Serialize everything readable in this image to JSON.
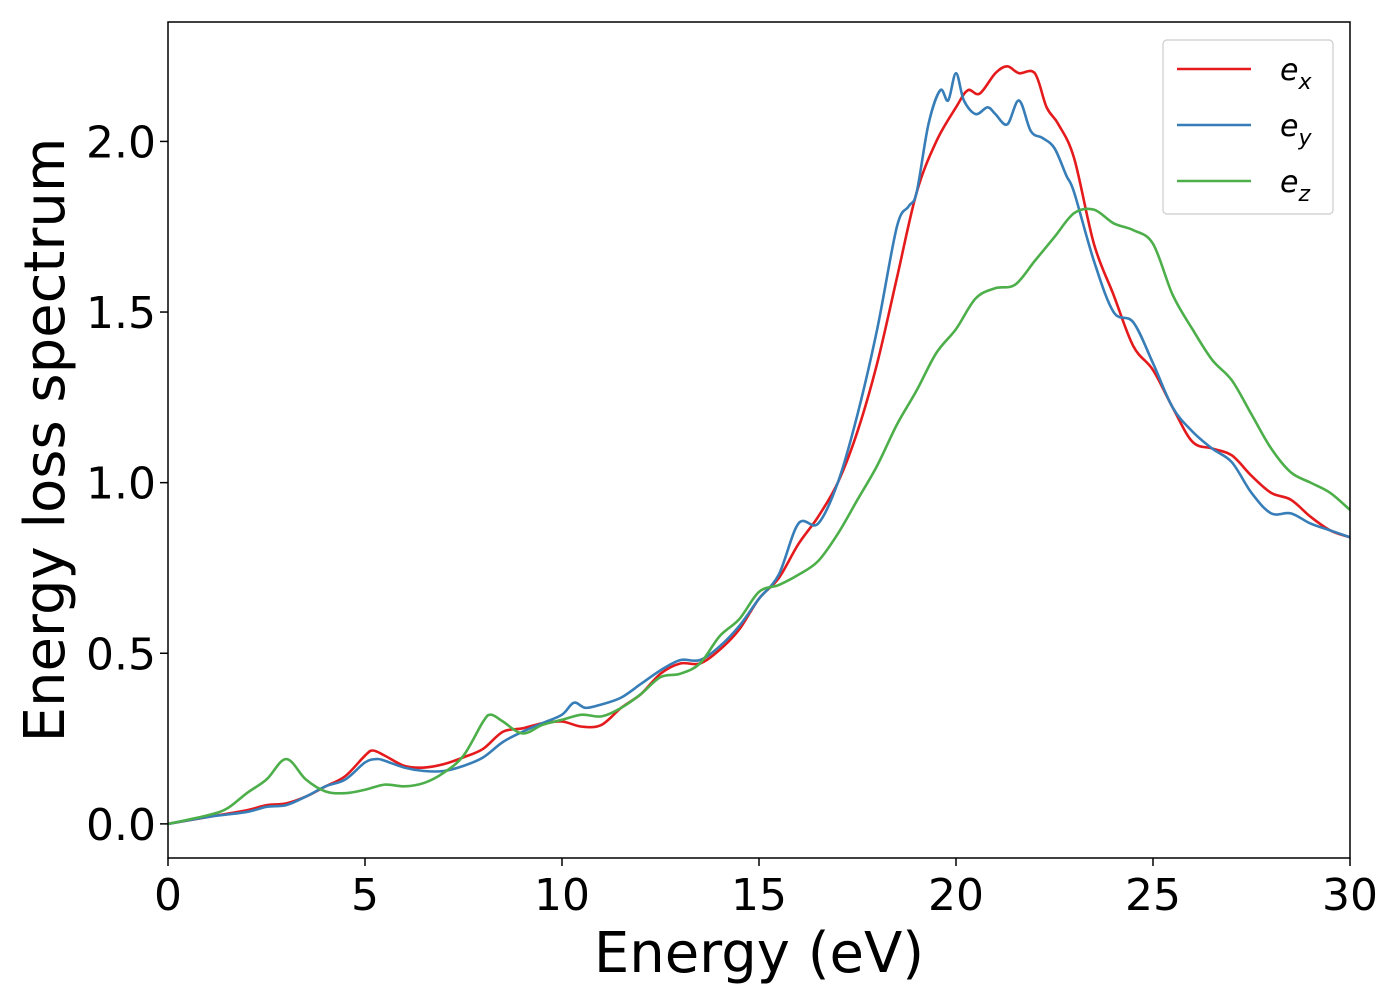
{
  "chart_data": {
    "type": "line",
    "title": "",
    "xlabel": "Energy (eV)",
    "ylabel": "Energy loss spectrum",
    "xlim": [
      0,
      30
    ],
    "ylim": [
      -0.1,
      2.35
    ],
    "xticks": [
      0,
      5,
      10,
      15,
      20,
      25,
      30
    ],
    "xtick_labels": [
      "0",
      "5",
      "10",
      "15",
      "20",
      "25",
      "30"
    ],
    "yticks": [
      0.0,
      0.5,
      1.0,
      1.5,
      2.0
    ],
    "ytick_labels": [
      "0.0",
      "0.5",
      "1.0",
      "1.5",
      "2.0"
    ],
    "grid": false,
    "legend_position": "top-right",
    "series": [
      {
        "name": "e_x",
        "label_main": "e",
        "label_sub": "x",
        "color": "#e41a1c",
        "x": [
          0,
          1,
          2,
          2.5,
          3,
          3.5,
          4,
          4.5,
          5,
          5.2,
          5.5,
          6,
          6.5,
          7,
          7.5,
          8,
          8.5,
          9,
          9.5,
          10,
          10.5,
          11,
          11.5,
          12,
          12.5,
          13,
          13.5,
          14,
          14.5,
          15,
          15.5,
          16,
          16.5,
          17,
          17.5,
          18,
          18.5,
          19,
          19.5,
          20,
          20.3,
          20.6,
          21,
          21.3,
          21.6,
          22,
          22.3,
          22.6,
          23,
          23.5,
          24,
          24.5,
          25,
          25.5,
          26,
          26.5,
          27,
          27.5,
          28,
          28.5,
          29,
          29.5,
          30
        ],
        "y": [
          0.0,
          0.02,
          0.04,
          0.055,
          0.06,
          0.08,
          0.11,
          0.14,
          0.2,
          0.215,
          0.2,
          0.17,
          0.165,
          0.175,
          0.195,
          0.22,
          0.27,
          0.28,
          0.295,
          0.3,
          0.285,
          0.29,
          0.34,
          0.38,
          0.44,
          0.47,
          0.47,
          0.51,
          0.57,
          0.66,
          0.72,
          0.82,
          0.9,
          1.0,
          1.15,
          1.35,
          1.6,
          1.85,
          2.0,
          2.1,
          2.15,
          2.14,
          2.2,
          2.22,
          2.2,
          2.2,
          2.1,
          2.05,
          1.95,
          1.7,
          1.55,
          1.4,
          1.33,
          1.22,
          1.12,
          1.1,
          1.08,
          1.02,
          0.97,
          0.95,
          0.9,
          0.86,
          0.84
        ]
      },
      {
        "name": "e_y",
        "label_main": "e",
        "label_sub": "y",
        "color": "#377eb8",
        "x": [
          0,
          1,
          2,
          2.5,
          3,
          3.5,
          4,
          4.5,
          5,
          5.3,
          5.5,
          6,
          6.5,
          7,
          7.5,
          8,
          8.5,
          9,
          9.5,
          10,
          10.3,
          10.6,
          11,
          11.5,
          12,
          12.5,
          13,
          13.5,
          14,
          14.5,
          15,
          15.5,
          16,
          16.5,
          17,
          17.5,
          18,
          18.5,
          18.8,
          19,
          19.3,
          19.6,
          19.8,
          20,
          20.2,
          20.5,
          20.8,
          21,
          21.3,
          21.6,
          21.9,
          22.2,
          22.5,
          22.8,
          23,
          23.5,
          24,
          24.5,
          25,
          25.5,
          26,
          26.5,
          27,
          27.5,
          28,
          28.5,
          29,
          29.5,
          30
        ],
        "y": [
          0.0,
          0.02,
          0.035,
          0.05,
          0.055,
          0.08,
          0.11,
          0.13,
          0.18,
          0.19,
          0.185,
          0.165,
          0.155,
          0.155,
          0.17,
          0.195,
          0.24,
          0.27,
          0.295,
          0.32,
          0.355,
          0.34,
          0.35,
          0.37,
          0.41,
          0.45,
          0.48,
          0.48,
          0.52,
          0.58,
          0.66,
          0.73,
          0.88,
          0.88,
          1.0,
          1.2,
          1.45,
          1.75,
          1.81,
          1.85,
          2.05,
          2.15,
          2.12,
          2.2,
          2.12,
          2.08,
          2.1,
          2.08,
          2.05,
          2.12,
          2.03,
          2.01,
          1.98,
          1.9,
          1.85,
          1.65,
          1.5,
          1.47,
          1.35,
          1.22,
          1.15,
          1.1,
          1.06,
          0.97,
          0.91,
          0.91,
          0.88,
          0.86,
          0.84
        ]
      },
      {
        "name": "e_z",
        "label_main": "e",
        "label_sub": "z",
        "color": "#4daf4a",
        "x": [
          0,
          1,
          1.5,
          2,
          2.5,
          3,
          3.5,
          4,
          4.5,
          5,
          5.5,
          6,
          6.5,
          7,
          7.5,
          8,
          8.2,
          8.5,
          9,
          9.5,
          10,
          10.5,
          11,
          11.5,
          12,
          12.5,
          13,
          13.5,
          14,
          14.5,
          15,
          15.5,
          16,
          16.5,
          17,
          17.5,
          18,
          18.5,
          19,
          19.5,
          20,
          20.5,
          21,
          21.5,
          22,
          22.5,
          23,
          23.5,
          24,
          24.5,
          25,
          25.5,
          26,
          26.5,
          27,
          27.5,
          28,
          28.5,
          29,
          29.5,
          30
        ],
        "y": [
          0.0,
          0.025,
          0.045,
          0.09,
          0.13,
          0.19,
          0.13,
          0.095,
          0.09,
          0.1,
          0.115,
          0.11,
          0.12,
          0.15,
          0.2,
          0.3,
          0.32,
          0.3,
          0.265,
          0.29,
          0.305,
          0.32,
          0.315,
          0.34,
          0.38,
          0.43,
          0.44,
          0.47,
          0.55,
          0.6,
          0.68,
          0.7,
          0.73,
          0.77,
          0.85,
          0.95,
          1.05,
          1.17,
          1.27,
          1.38,
          1.45,
          1.54,
          1.57,
          1.58,
          1.65,
          1.72,
          1.79,
          1.8,
          1.76,
          1.74,
          1.7,
          1.55,
          1.45,
          1.36,
          1.3,
          1.2,
          1.1,
          1.03,
          1.0,
          0.97,
          0.92
        ]
      }
    ]
  }
}
